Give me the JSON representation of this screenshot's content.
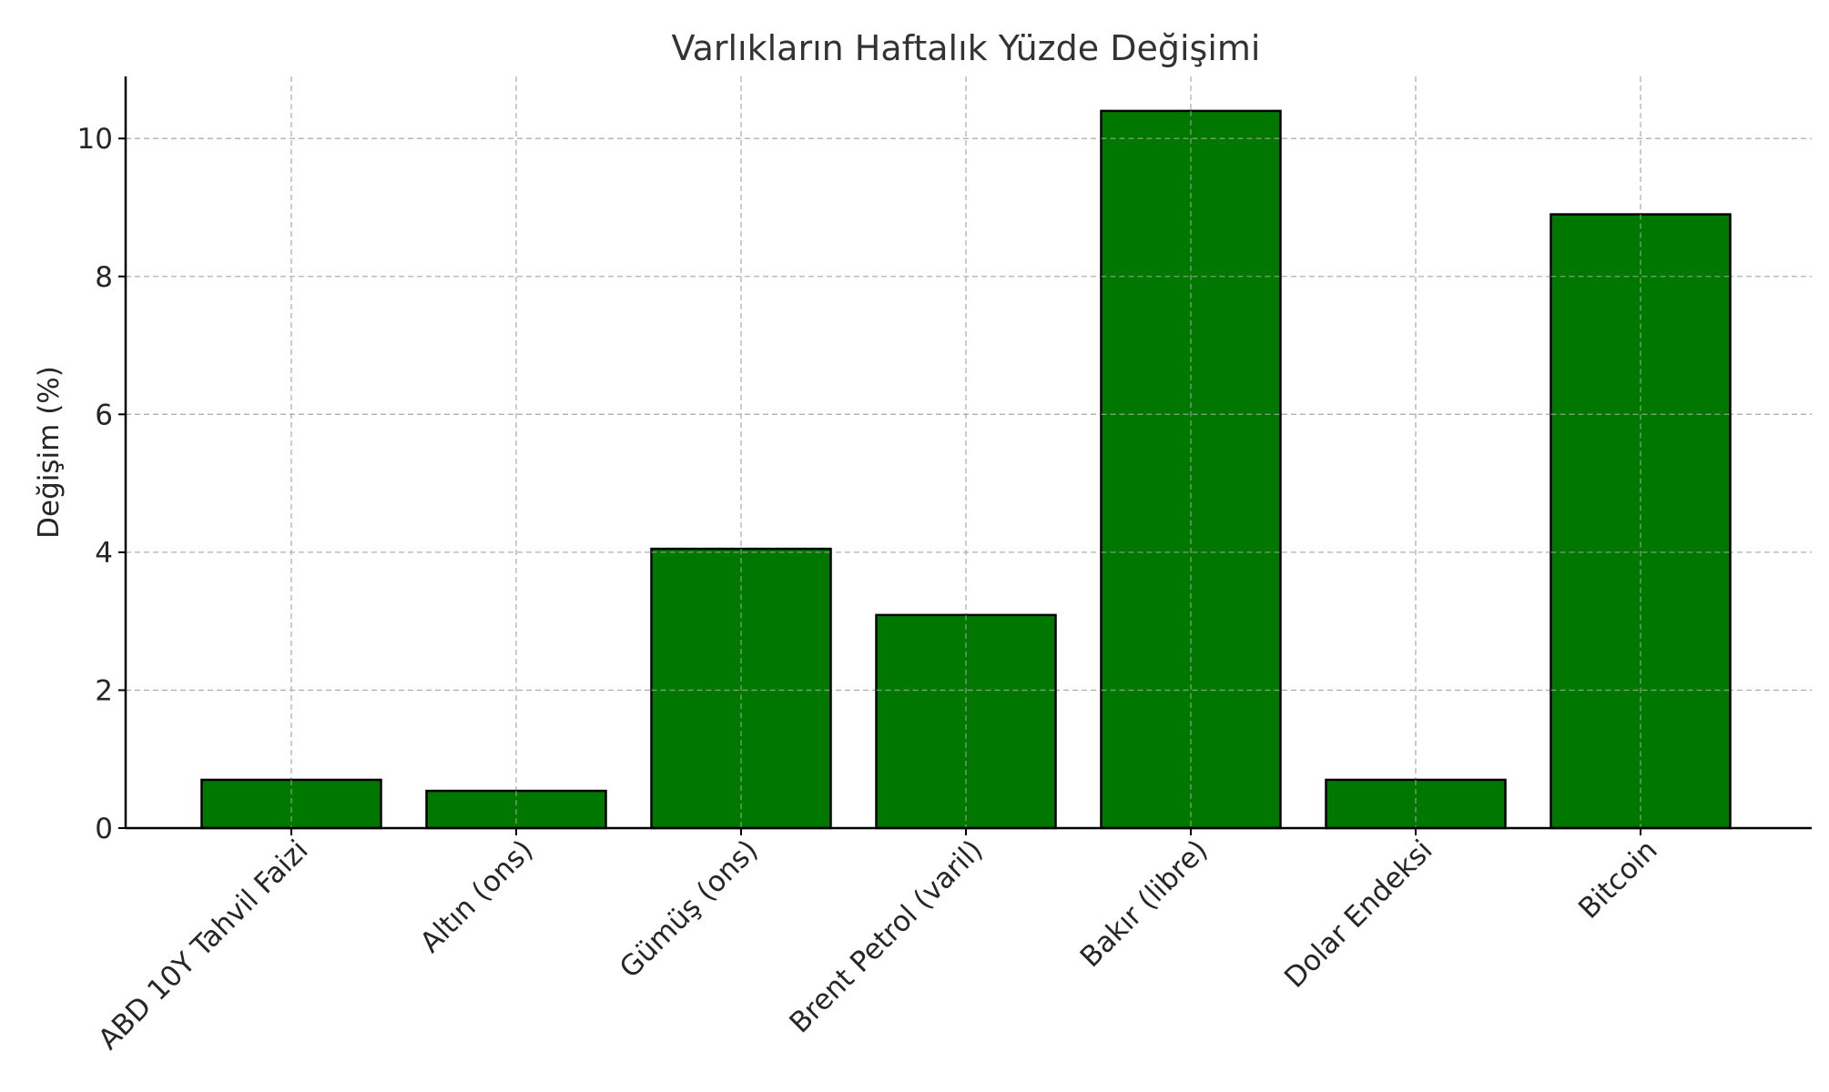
{
  "chart_data": {
    "type": "bar",
    "title": "Varlıkların Haftalık Yüzde Değişimi",
    "xlabel": "",
    "ylabel": "Değişim (%)",
    "categories": [
      "ABD 10Y Tahvil Faizi",
      "Altın (ons)",
      "Gümüş (ons)",
      "Brent Petrol (varil)",
      "Bakır (libre)",
      "Dolar Endeksi",
      "Bitcoin"
    ],
    "values": [
      0.7,
      0.54,
      4.05,
      3.09,
      10.4,
      0.7,
      8.9
    ],
    "ylim": [
      0,
      10.9
    ],
    "yticks": [
      0,
      2,
      4,
      6,
      8,
      10
    ],
    "grid": true,
    "bar_color": "#007800",
    "edge_color": "#000000",
    "grid_color": "#b0b0b0"
  }
}
